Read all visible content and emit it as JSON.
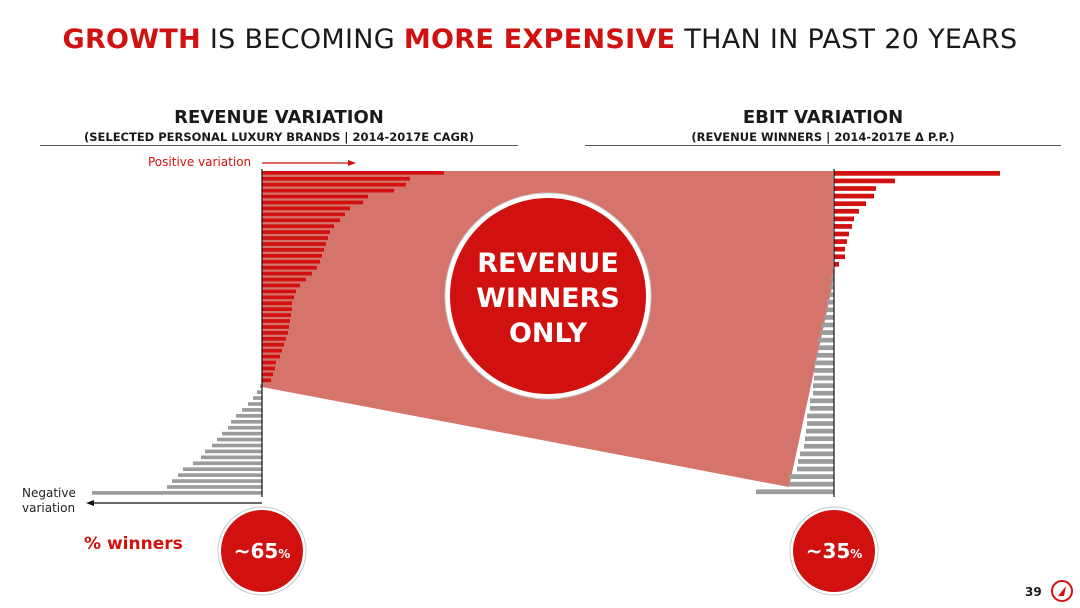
{
  "title": {
    "w1": "GROWTH",
    "w2": " IS BECOMING ",
    "w3": "MORE EXPENSIVE",
    "w4": " THAN IN PAST 20 YEARS"
  },
  "panels": {
    "left": {
      "heading": "REVENUE VARIATION",
      "subheading": "(SELECTED PERSONAL LUXURY BRANDS | 2014-2017E CAGR)"
    },
    "right": {
      "heading": "EBIT VARIATION",
      "subheading": "(REVENUE WINNERS | 2014-2017E Δ P.P.)"
    }
  },
  "annotations": {
    "positive": "Positive variation",
    "negative_line1": "Negative",
    "negative_line2": "variation",
    "winners_label": "% winners",
    "center_line1": "REVENUE",
    "center_line2": "WINNERS",
    "center_line3": "ONLY",
    "left_pct_value": "~65",
    "left_pct_sign": "%",
    "right_pct_value": "~35",
    "right_pct_sign": "%"
  },
  "page_number": "39",
  "colors": {
    "accent": "#d0110f",
    "negative_bar": "#9b9b9b",
    "band": "#d5746b"
  },
  "chart_data": [
    {
      "type": "bar",
      "orientation": "horizontal",
      "name": "Revenue variation",
      "positive_values": [
        182,
        148,
        144,
        132,
        106,
        101,
        88,
        83,
        78,
        72,
        68,
        66,
        64,
        62,
        60,
        58,
        55,
        50,
        44,
        38,
        34,
        32,
        30,
        30,
        29,
        28,
        27,
        26,
        24,
        22,
        20,
        18,
        14,
        13,
        11,
        9
      ],
      "negative_values": [
        -2,
        -5,
        -9,
        -14,
        -20,
        -26,
        -31,
        -34,
        -40,
        -45,
        -50,
        -57,
        -61,
        -69,
        -79,
        -84,
        -90,
        -95,
        -170
      ],
      "winners_share": "~65%"
    },
    {
      "type": "bar",
      "orientation": "horizontal",
      "name": "EBIT variation",
      "positive_values": [
        166,
        61,
        42,
        40,
        32,
        25,
        20,
        18,
        15,
        13,
        11,
        11,
        5
      ],
      "negative_values": [
        -1,
        -3,
        -4,
        -5,
        -7,
        -8,
        -10,
        -13,
        -14,
        -16,
        -16,
        -18,
        -20,
        -20,
        -20,
        -21,
        -21,
        -24,
        -24,
        -27,
        -27,
        -28,
        -29,
        -30,
        -34,
        -36,
        -37,
        -45,
        -45,
        -78
      ],
      "winners_share": "~35%"
    }
  ]
}
